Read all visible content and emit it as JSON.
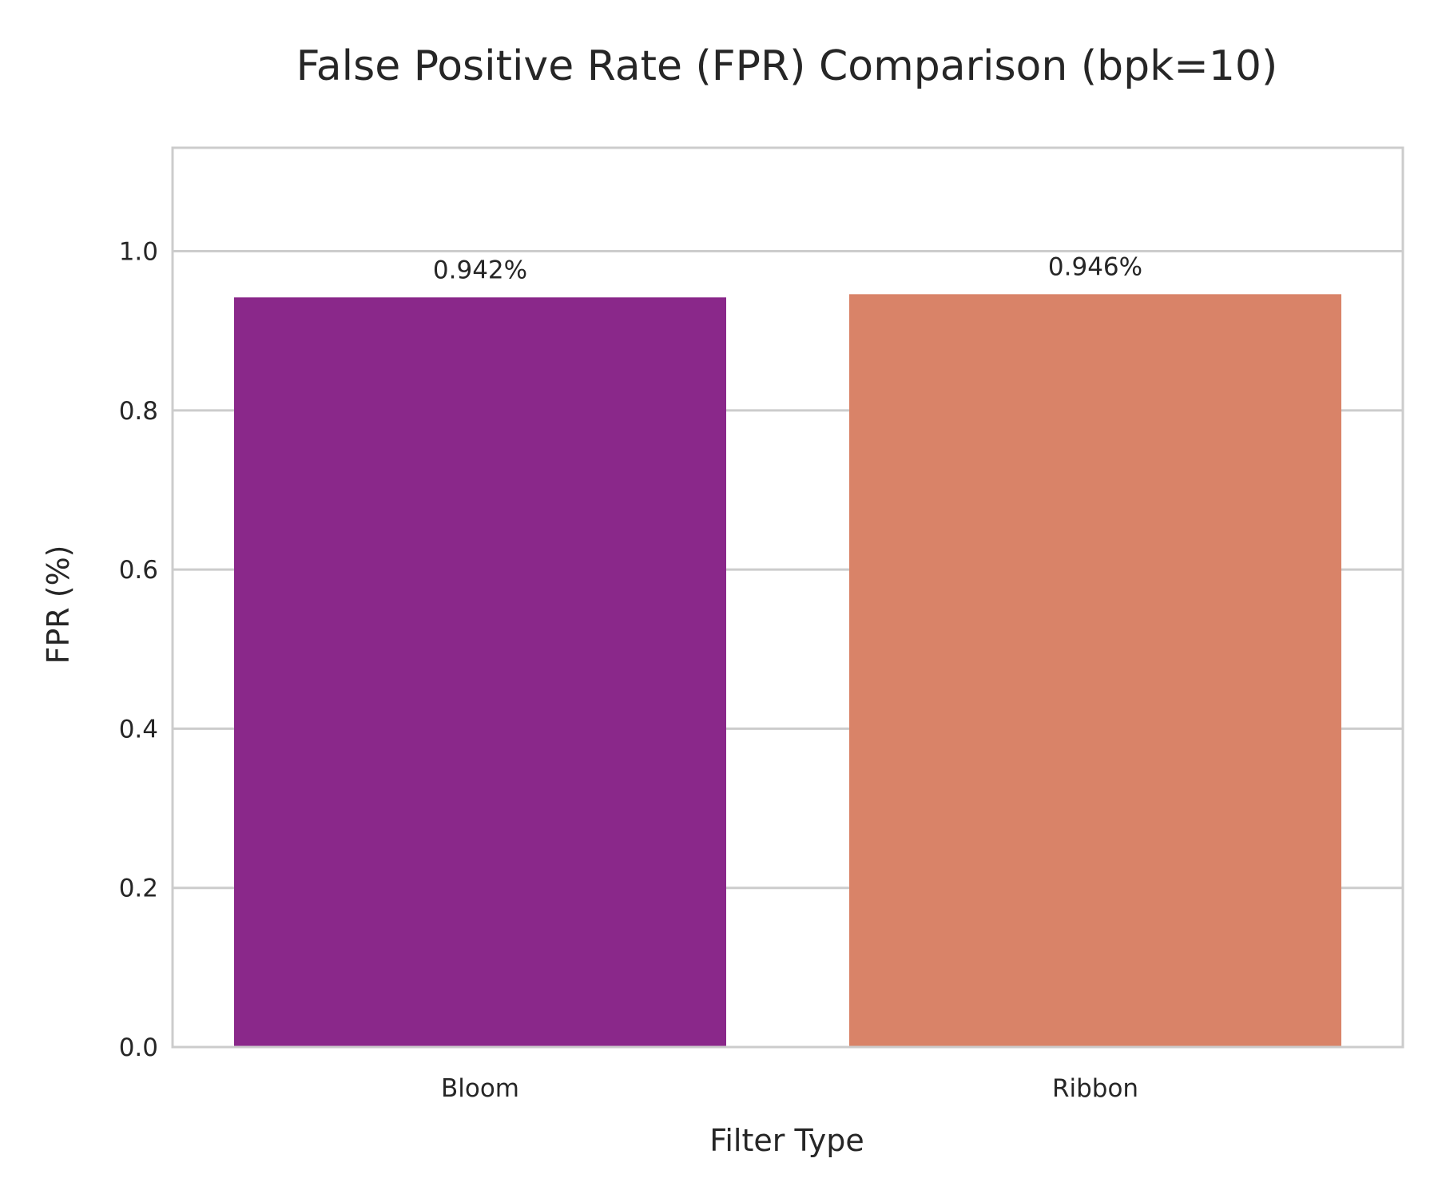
{
  "chart_data": {
    "type": "bar",
    "title": "False Positive Rate (FPR) Comparison (bpk=10)",
    "xlabel": "Filter Type",
    "ylabel": "FPR (%)",
    "categories": [
      "Bloom",
      "Ribbon"
    ],
    "values": [
      0.942,
      0.946
    ],
    "data_labels": [
      "0.942%",
      "0.946%"
    ],
    "bar_colors": [
      "#8A288A",
      "#D98368"
    ],
    "ylim": [
      0,
      1.13
    ],
    "yticks": [
      0.0,
      0.2,
      0.4,
      0.6,
      0.8,
      1.0
    ],
    "ytick_labels": [
      "0.0",
      "0.2",
      "0.4",
      "0.6",
      "0.8",
      "1.0"
    ],
    "grid": true,
    "grid_axis": "y",
    "grid_color": "#cccccc",
    "frame_color": "#cccccc",
    "legend": "none"
  }
}
